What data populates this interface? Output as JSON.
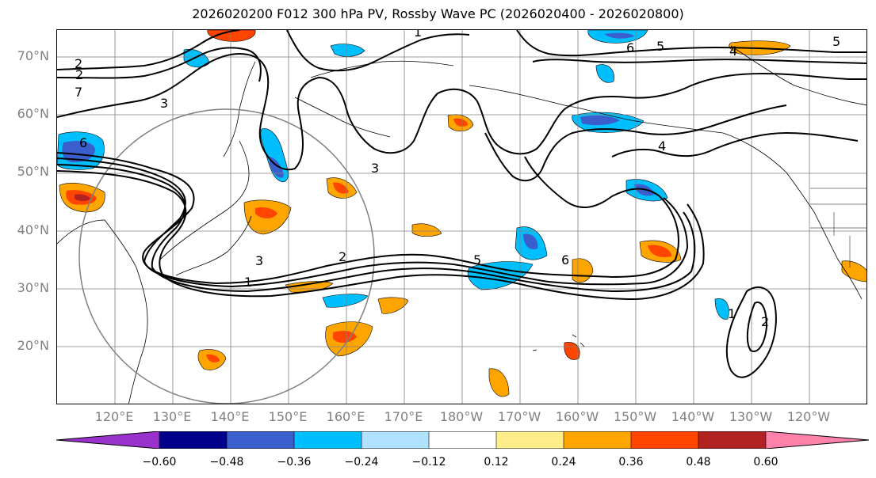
{
  "title": "2026020200 F012 300 hPa PV, Rossby Wave PC (2026020400 - 2026020800)",
  "map": {
    "lat_labels": [
      "70°N",
      "60°N",
      "50°N",
      "40°N",
      "30°N",
      "20°N"
    ],
    "lon_labels": [
      "120°E",
      "130°E",
      "140°E",
      "150°E",
      "160°E",
      "170°E",
      "180°W",
      "170°W",
      "160°W",
      "150°W",
      "140°W",
      "130°W",
      "120°W"
    ],
    "contour_labels": [
      "1",
      "2",
      "3",
      "4",
      "5",
      "6",
      "7",
      "2",
      "3",
      "5",
      "6",
      "1",
      "2",
      "3",
      "4",
      "5",
      "6",
      "1",
      "2"
    ],
    "colors": {
      "neg_060": "#9932cc",
      "neg_048": "#00008b",
      "neg_036": "#3a5fcd",
      "neg_024": "#00bfff",
      "neg_012": "#b0e2ff",
      "neutral": "#ffffff",
      "pos_012": "#ffec8b",
      "pos_024": "#ffa500",
      "pos_036": "#ff4500",
      "pos_048": "#b22222",
      "pos_060": "#ff82ab"
    }
  },
  "colorbar": {
    "ticks": [
      "−0.60",
      "−0.48",
      "−0.36",
      "−0.24",
      "−0.12",
      "0.12",
      "0.24",
      "0.36",
      "0.48",
      "0.60"
    ],
    "colors": [
      "#9932cc",
      "#00008b",
      "#3a5fcd",
      "#00bfff",
      "#b0e2ff",
      "#ffffff",
      "#ffec8b",
      "#ffa500",
      "#ff4500",
      "#b22222",
      "#ff82ab",
      "#ff82ab"
    ]
  }
}
